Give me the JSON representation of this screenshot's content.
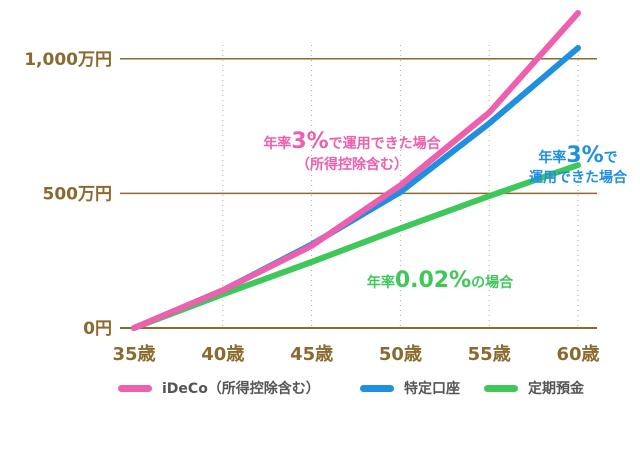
{
  "chart_data": {
    "type": "line",
    "x": [
      35,
      40,
      45,
      50,
      55,
      60
    ],
    "x_tick_labels": [
      "35歳",
      "40歳",
      "45歳",
      "50歳",
      "55歳",
      "60歳"
    ],
    "y_tick_labels": [
      "0円",
      "500万円",
      "1,000万円"
    ],
    "y_ticks": [
      0,
      500,
      1000
    ],
    "ylim": [
      0,
      1200
    ],
    "xlim": [
      35,
      60
    ],
    "grid": {
      "horizontal": true,
      "vertical_dotted": true
    },
    "legend_position": "bottom",
    "series": [
      {
        "name": "iDeCo（所得控除含む）",
        "color": "#ee5fae",
        "values": [
          0,
          140,
          305,
          530,
          800,
          1170
        ]
      },
      {
        "name": "特定口座",
        "color": "#1f8fe0",
        "values": [
          0,
          140,
          310,
          505,
          760,
          1040
        ]
      },
      {
        "name": "定期預金",
        "color": "#3fc85a",
        "values": [
          0,
          125,
          245,
          370,
          490,
          605
        ]
      }
    ],
    "annotations": [
      {
        "series": 0,
        "lines": [
          [
            "年率",
            "3%",
            "で運用できた場合"
          ],
          [
            "（所得控除含む）"
          ]
        ]
      },
      {
        "series": 1,
        "lines": [
          [
            "年率",
            "3%",
            "で"
          ],
          [
            "運用できた場合"
          ]
        ]
      },
      {
        "series": 2,
        "lines": [
          [
            "年率",
            "0.02%",
            "の場合"
          ]
        ]
      }
    ]
  }
}
